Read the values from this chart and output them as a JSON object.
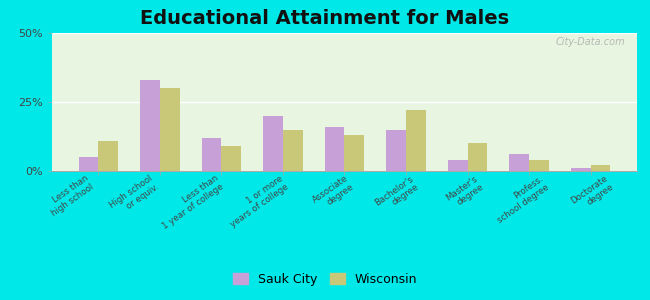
{
  "title": "Educational Attainment for Males",
  "categories": [
    "Less than\nhigh school",
    "High school\nor equiv.",
    "Less than\n1 year of college",
    "1 or more\nyears of college",
    "Associate\ndegree",
    "Bachelor's\ndegree",
    "Master's\ndegree",
    "Profess.\nschool degree",
    "Doctorate\ndegree"
  ],
  "sauk_city": [
    5.0,
    33.0,
    12.0,
    20.0,
    16.0,
    15.0,
    4.0,
    6.0,
    1.0
  ],
  "wisconsin": [
    11.0,
    30.0,
    9.0,
    15.0,
    13.0,
    22.0,
    10.0,
    4.0,
    2.0
  ],
  "sauk_color": "#c8a0d8",
  "wisc_color": "#c8c878",
  "bg_outer": "#00e8e8",
  "bg_plot": "#e8f5e0",
  "title_fontsize": 14,
  "ylabel_ticks": [
    0,
    25,
    50
  ],
  "ylim": [
    0,
    50
  ],
  "bar_width": 0.32,
  "legend_labels": [
    "Sauk City",
    "Wisconsin"
  ],
  "watermark": "City-Data.com"
}
